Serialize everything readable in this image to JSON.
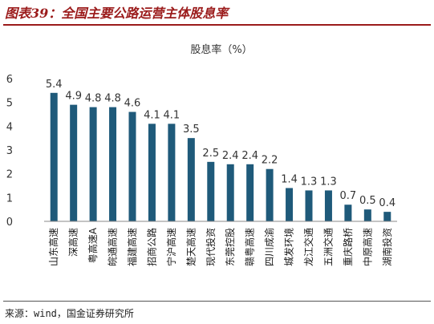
{
  "figure": {
    "title": "图表39：全国主要公路运营主体股息率",
    "source": "来源：wind，国金证券研究所"
  },
  "chart_data": {
    "type": "bar",
    "unit_label": "股息率（%）",
    "categories": [
      "山东高速",
      "深高速",
      "粤高速A",
      "皖通高速",
      "福建高速",
      "招商公路",
      "宁沪高速",
      "楚天高速",
      "现代投资",
      "东莞控股",
      "赣粤高速",
      "四川成渝",
      "城发环境",
      "龙江交通",
      "五洲交通",
      "重庆路桥",
      "中原高速",
      "湖南投资"
    ],
    "values": [
      5.4,
      4.9,
      4.8,
      4.8,
      4.6,
      4.1,
      4.1,
      3.5,
      2.5,
      2.4,
      2.4,
      2.2,
      1.4,
      1.3,
      1.3,
      0.7,
      0.5,
      0.4
    ],
    "value_labels": [
      "5.4",
      "4.9",
      "4.8",
      "4.8",
      "4.6",
      "4.1",
      "4.1",
      "3.5",
      "2.5",
      "2.4",
      "2.4",
      "2.2",
      "1.4",
      "1.3",
      "1.3",
      "0.7",
      "0.5",
      "0.4"
    ],
    "yticks": [
      0,
      1,
      2,
      3,
      4,
      5,
      6
    ],
    "ylim": [
      0,
      6
    ],
    "bar_color": "#1f5a7a",
    "grid": false,
    "legend": "none"
  }
}
